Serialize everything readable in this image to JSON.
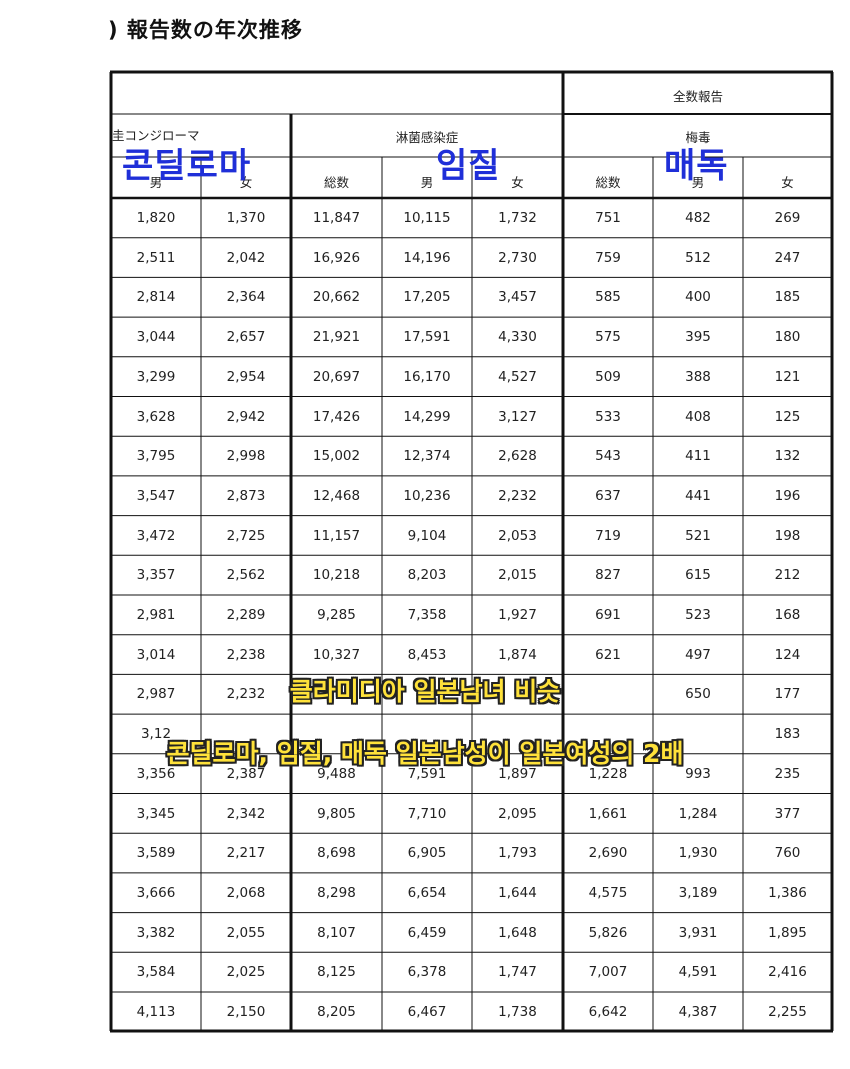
{
  "title": ") 報告数の年次推移",
  "headers": {
    "all_reports": "全数報告",
    "condyloma_partial": "圭コンジローマ",
    "gonorrhea": "淋菌感染症",
    "syphilis": "梅毒",
    "total": "総数",
    "male": "男",
    "female": "女"
  },
  "overlays": {
    "label_condyloma": "콘딜로마",
    "label_gonorrhea": "임질",
    "label_syphilis": "매독",
    "caption_line1": "클라미디아 일본남녀 비슷",
    "caption_line2": "콘딜로마, 임질, 매독 일본남성이 일본여성의 2배"
  },
  "rows": [
    [
      "1,820",
      "1,370",
      "11,847",
      "10,115",
      "1,732",
      "751",
      "482",
      "269"
    ],
    [
      "2,511",
      "2,042",
      "16,926",
      "14,196",
      "2,730",
      "759",
      "512",
      "247"
    ],
    [
      "2,814",
      "2,364",
      "20,662",
      "17,205",
      "3,457",
      "585",
      "400",
      "185"
    ],
    [
      "3,044",
      "2,657",
      "21,921",
      "17,591",
      "4,330",
      "575",
      "395",
      "180"
    ],
    [
      "3,299",
      "2,954",
      "20,697",
      "16,170",
      "4,527",
      "509",
      "388",
      "121"
    ],
    [
      "3,628",
      "2,942",
      "17,426",
      "14,299",
      "3,127",
      "533",
      "408",
      "125"
    ],
    [
      "3,795",
      "2,998",
      "15,002",
      "12,374",
      "2,628",
      "543",
      "411",
      "132"
    ],
    [
      "3,547",
      "2,873",
      "12,468",
      "10,236",
      "2,232",
      "637",
      "441",
      "196"
    ],
    [
      "3,472",
      "2,725",
      "11,157",
      "9,104",
      "2,053",
      "719",
      "521",
      "198"
    ],
    [
      "3,357",
      "2,562",
      "10,218",
      "8,203",
      "2,015",
      "827",
      "615",
      "212"
    ],
    [
      "2,981",
      "2,289",
      "9,285",
      "7,358",
      "1,927",
      "691",
      "523",
      "168"
    ],
    [
      "3,014",
      "2,238",
      "10,327",
      "8,453",
      "1,874",
      "621",
      "497",
      "124"
    ],
    [
      "2,987",
      "2,232",
      "",
      "",
      "",
      "",
      "650",
      "177"
    ],
    [
      "3,12",
      "",
      "",
      "",
      "",
      "",
      "",
      "183"
    ],
    [
      "3,356",
      "2,387",
      "9,488",
      "7,591",
      "1,897",
      "1,228",
      "993",
      "235"
    ],
    [
      "3,345",
      "2,342",
      "9,805",
      "7,710",
      "2,095",
      "1,661",
      "1,284",
      "377"
    ],
    [
      "3,589",
      "2,217",
      "8,698",
      "6,905",
      "1,793",
      "2,690",
      "1,930",
      "760"
    ],
    [
      "3,666",
      "2,068",
      "8,298",
      "6,654",
      "1,644",
      "4,575",
      "3,189",
      "1,386"
    ],
    [
      "3,382",
      "2,055",
      "8,107",
      "6,459",
      "1,648",
      "5,826",
      "3,931",
      "1,895"
    ],
    [
      "3,584",
      "2,025",
      "8,125",
      "6,378",
      "1,747",
      "7,007",
      "4,591",
      "2,416"
    ],
    [
      "4,113",
      "2,150",
      "8,205",
      "6,467",
      "1,738",
      "6,642",
      "4,387",
      "2,255"
    ]
  ]
}
